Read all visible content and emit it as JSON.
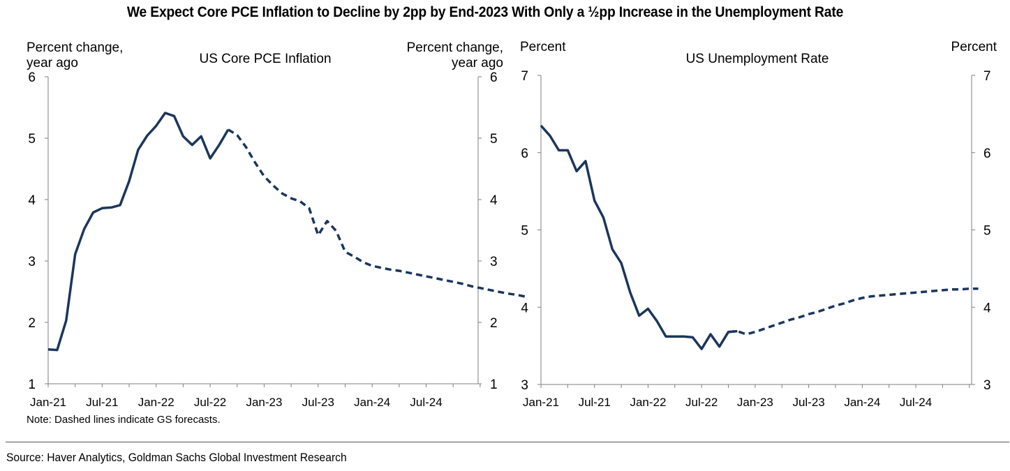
{
  "title": "We Expect Core PCE Inflation to Decline by 2pp by End-2023 With Only a ½pp Increase in the Unemployment Rate",
  "note": "Note: Dashed lines indicate GS forecasts.",
  "source": "Source: Haver Analytics, Goldman Sachs Global Investment Research",
  "colors": {
    "line": "#1b365d",
    "axis": "#7f7f7f"
  },
  "chart_data": [
    {
      "type": "line",
      "title": "US Core PCE Inflation",
      "ylabel_left": "Percent change,\nyear ago",
      "ylabel_right": "Percent change,\nyear ago",
      "xlabel": "",
      "ylim": [
        1,
        6
      ],
      "yticks": [
        "1",
        "2",
        "3",
        "4",
        "5",
        "6"
      ],
      "xticks": [
        "Jan-21",
        "Jul-21",
        "Jan-22",
        "Jul-22",
        "Jan-23",
        "Jul-23",
        "Jan-24",
        "Jul-24"
      ],
      "x_start": "Jan-21",
      "grid": false,
      "series": [
        {
          "style": "solid",
          "values": [
            1.56,
            1.55,
            2.03,
            3.11,
            3.52,
            3.79,
            3.86,
            3.87,
            3.91,
            4.3,
            4.81,
            5.04,
            5.2,
            5.41,
            5.36,
            5.03,
            4.89,
            5.03,
            4.67,
            4.89,
            5.14
          ]
        },
        {
          "style": "dashed",
          "x_offset": 20,
          "values": [
            5.14,
            5.05,
            4.85,
            4.6,
            4.38,
            4.23,
            4.1,
            4.02,
            3.97,
            3.86,
            3.42,
            3.65,
            3.49,
            3.15,
            3.07,
            2.98,
            2.92,
            2.89,
            2.86,
            2.84,
            2.81,
            2.78,
            2.75,
            2.72,
            2.69,
            2.66,
            2.63,
            2.59,
            2.56,
            2.53,
            2.5,
            2.47,
            2.45,
            2.42
          ]
        }
      ]
    },
    {
      "type": "line",
      "title": "US Unemployment Rate",
      "ylabel_left": "Percent",
      "ylabel_right": "Percent",
      "xlabel": "",
      "ylim": [
        3,
        7
      ],
      "yticks": [
        "3",
        "4",
        "5",
        "6",
        "7"
      ],
      "xticks": [
        "Jan-21",
        "Jul-21",
        "Jan-22",
        "Jul-22",
        "Jan-23",
        "Jul-23",
        "Jan-24",
        "Jul-24"
      ],
      "x_start": "Jan-21",
      "grid": false,
      "series": [
        {
          "style": "solid",
          "values": [
            6.35,
            6.22,
            6.03,
            6.03,
            5.76,
            5.89,
            5.38,
            5.16,
            4.75,
            4.57,
            4.19,
            3.89,
            3.98,
            3.82,
            3.62,
            3.62,
            3.62,
            3.61,
            3.46,
            3.65,
            3.49,
            3.68,
            3.69
          ]
        },
        {
          "style": "dashed",
          "x_offset": 21,
          "values": [
            3.68,
            3.69,
            3.65,
            3.68,
            3.72,
            3.76,
            3.8,
            3.84,
            3.87,
            3.91,
            3.94,
            3.98,
            4.02,
            4.05,
            4.09,
            4.12,
            4.14,
            4.15,
            4.16,
            4.17,
            4.18,
            4.19,
            4.2,
            4.21,
            4.22,
            4.23,
            4.23,
            4.24,
            4.24
          ]
        }
      ]
    }
  ]
}
